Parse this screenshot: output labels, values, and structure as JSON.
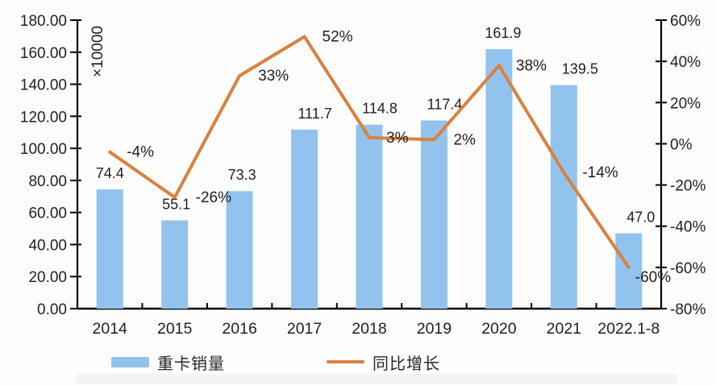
{
  "chart_data": {
    "type": "combo-bar-line",
    "title": "",
    "categories": [
      "2014",
      "2015",
      "2016",
      "2017",
      "2018",
      "2019",
      "2020",
      "2021",
      "2022.1-8"
    ],
    "series": [
      {
        "name": "重卡销量",
        "type": "bar",
        "axis": "left",
        "values": [
          74.4,
          55.1,
          73.3,
          111.7,
          114.8,
          117.4,
          161.9,
          139.5,
          47.0
        ],
        "labels": [
          "74.4",
          "55.1",
          "73.3",
          "111.7",
          "114.8",
          "117.4",
          "161.9",
          "139.5",
          "47.0"
        ]
      },
      {
        "name": "同比增长",
        "type": "line",
        "axis": "right",
        "values": [
          -4,
          -26,
          33,
          52,
          3,
          2,
          38,
          -14,
          -60
        ],
        "labels": [
          "-4%",
          "-26%",
          "33%",
          "52%",
          "3%",
          "2%",
          "38%",
          "-14%",
          "-60%"
        ]
      }
    ],
    "left_axis": {
      "min": 0,
      "max": 180,
      "step": 20,
      "unit_label": "×10000",
      "tick_values": [
        0,
        20,
        40,
        60,
        80,
        100,
        120,
        140,
        160,
        180
      ],
      "tick_labels": [
        "0.00",
        "20.00",
        "40.00",
        "60.00",
        "80.00",
        "100.00",
        "120.00",
        "140.00",
        "160.00",
        "180.00"
      ]
    },
    "right_axis": {
      "min": -80,
      "max": 60,
      "step": 20,
      "tick_values": [
        -80,
        -60,
        -40,
        -20,
        0,
        20,
        40,
        60
      ],
      "tick_labels": [
        "-80%",
        "-60%",
        "-40%",
        "-20%",
        "0%",
        "20%",
        "40%",
        "60%"
      ]
    },
    "legend": {
      "position": "bottom",
      "items": [
        "重卡销量",
        "同比增长"
      ]
    },
    "grid": false,
    "label_offsets": {
      "bar_dx": [
        0,
        2,
        3,
        13,
        13,
        13,
        5,
        20,
        15
      ],
      "line_dx": [
        21,
        26,
        23,
        22,
        21,
        24,
        21,
        23,
        8
      ],
      "line_dy": [
        0,
        0,
        0,
        0,
        0,
        0,
        0,
        0,
        12
      ]
    }
  },
  "legend": {
    "bar_label": "重卡销量",
    "line_label": "同比增长"
  },
  "colors": {
    "bar": "#92C3EE",
    "line": "#D9813E",
    "text": "#1f1f1f",
    "axis": "#000000"
  }
}
